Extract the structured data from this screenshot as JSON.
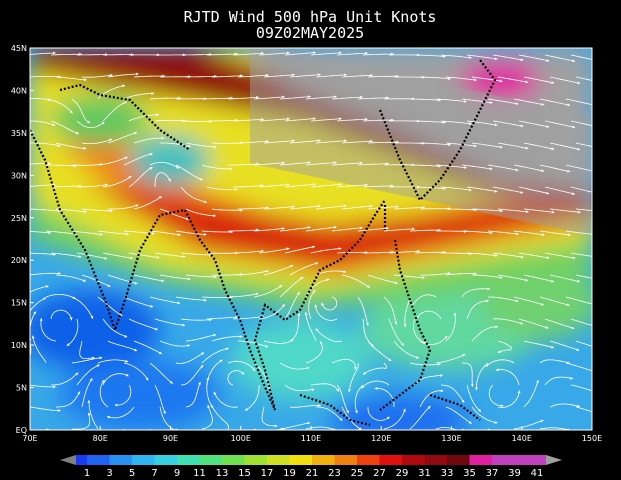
{
  "title": "RJTD Wind 500 hPa Unit Knots",
  "subtitle": "09Z02MAY2025",
  "lat_labels": [
    "45N",
    "40N",
    "35N",
    "30N",
    "25N",
    "20N",
    "15N",
    "10N",
    "5N",
    "EQ"
  ],
  "lon_labels": [
    "70E",
    "80E",
    "90E",
    "100E",
    "110E",
    "120E",
    "130E",
    "140E",
    "150E"
  ],
  "colorbar_labels": [
    "1",
    "3",
    "5",
    "7",
    "9",
    "11",
    "13",
    "15",
    "17",
    "19",
    "21",
    "23",
    "25",
    "27",
    "29",
    "31",
    "33",
    "35",
    "37",
    "39",
    "41"
  ]
}
